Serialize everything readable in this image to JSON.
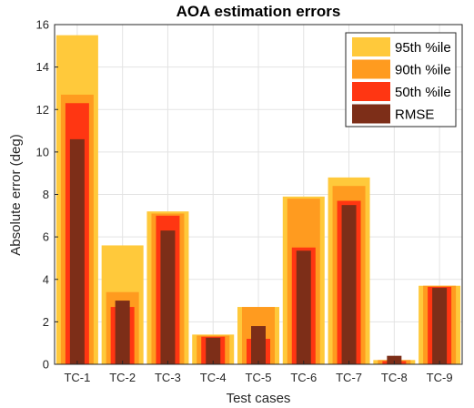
{
  "chart_data": {
    "type": "bar",
    "title": "AOA estimation errors",
    "xlabel": "Test cases",
    "ylabel": "Absolute error (deg)",
    "ylim": [
      0,
      16
    ],
    "yticks": [
      0,
      2,
      4,
      6,
      8,
      10,
      12,
      14,
      16
    ],
    "grid": true,
    "legend_position": "top-right",
    "categories": [
      "TC-1",
      "TC-2",
      "TC-3",
      "TC-4",
      "TC-5",
      "TC-6",
      "TC-7",
      "TC-8",
      "TC-9"
    ],
    "series": [
      {
        "name": "95th %ile",
        "color": "#FFC93B",
        "values": [
          15.5,
          5.6,
          7.2,
          1.4,
          2.7,
          7.9,
          8.8,
          0.2,
          3.7
        ]
      },
      {
        "name": "90th %ile",
        "color": "#FF9B1F",
        "values": [
          12.7,
          3.4,
          7.1,
          1.35,
          2.7,
          7.8,
          8.4,
          0.2,
          3.7
        ]
      },
      {
        "name": "50th %ile",
        "color": "#FF3612",
        "values": [
          12.3,
          2.7,
          7.0,
          1.3,
          1.2,
          5.5,
          7.7,
          0.15,
          3.65
        ]
      },
      {
        "name": "RMSE",
        "color": "#7D2E18",
        "values": [
          10.6,
          3.0,
          6.3,
          1.25,
          1.8,
          5.35,
          7.5,
          0.4,
          3.6
        ]
      }
    ]
  }
}
